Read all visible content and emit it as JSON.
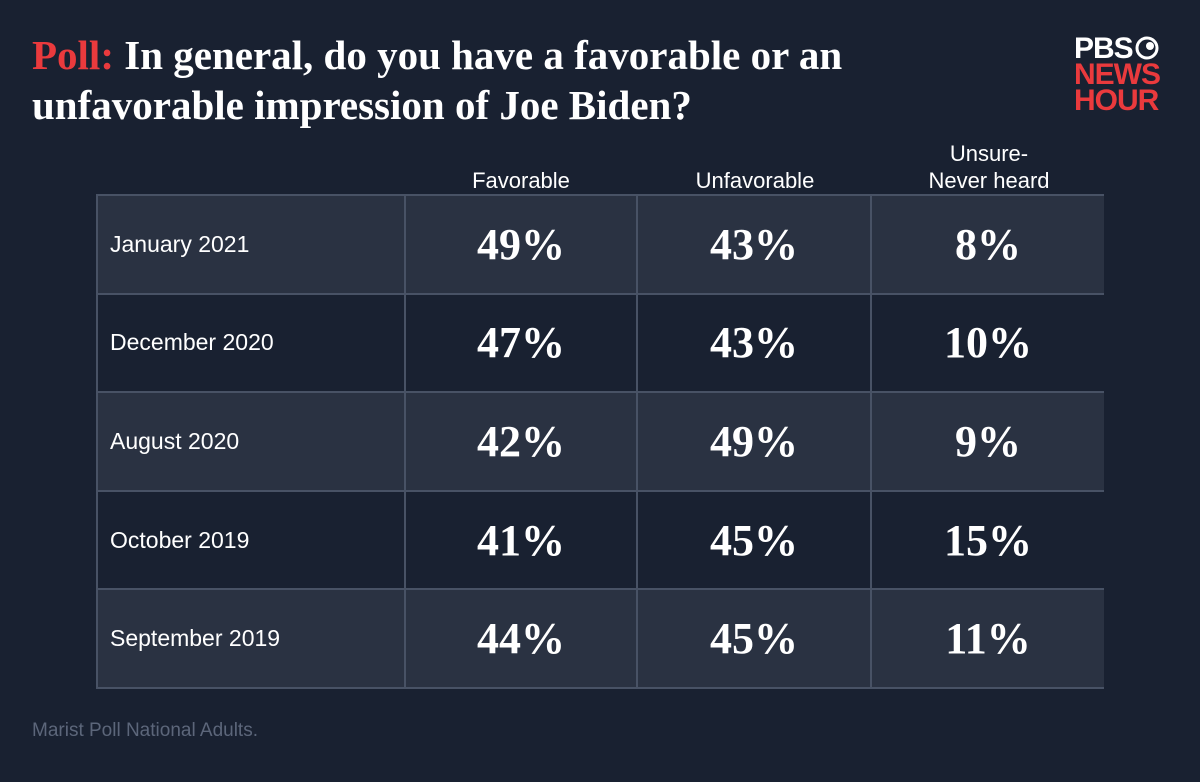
{
  "header": {
    "title_lead": "Poll:",
    "title": "In general, do you have a favorable or an unfavorable impression of Joe Biden?"
  },
  "logo": {
    "line1": "PBS",
    "line2": "NEWS",
    "line3": "HOUR"
  },
  "table": {
    "columns": [
      "Favorable",
      "Unfavorable",
      "Unsure-\nNever heard"
    ],
    "rows": [
      {
        "label": "January 2021",
        "values": [
          "49%",
          "43%",
          "8%"
        ]
      },
      {
        "label": "December 2020",
        "values": [
          "47%",
          "43%",
          "10%"
        ]
      },
      {
        "label": "August 2020",
        "values": [
          "42%",
          "49%",
          "9%"
        ]
      },
      {
        "label": "October 2019",
        "values": [
          "41%",
          "45%",
          "15%"
        ]
      },
      {
        "label": "September 2019",
        "values": [
          "44%",
          "45%",
          "11%"
        ]
      }
    ]
  },
  "footer": {
    "source": "Marist Poll National Adults."
  }
}
